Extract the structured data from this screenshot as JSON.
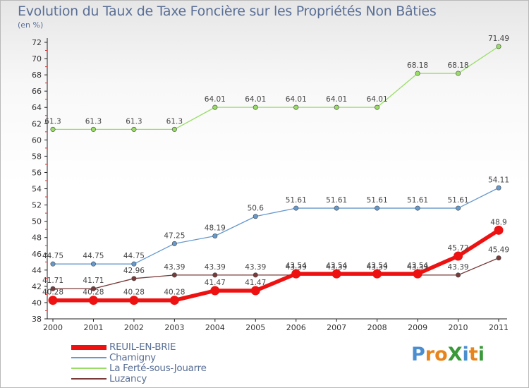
{
  "title": "Evolution du Taux de Taxe Foncière sur les Propriétés Non Bâties",
  "unit_label": "(en %)",
  "logo": {
    "text": "ProXiti",
    "letters": [
      {
        "ch": "P",
        "color": "#4a8ed0"
      },
      {
        "ch": "r",
        "color": "#e8841c"
      },
      {
        "ch": "o",
        "color": "#e8841c"
      },
      {
        "ch": "X",
        "color": "#3a9a3a"
      },
      {
        "ch": "i",
        "color": "#4a8ed0"
      },
      {
        "ch": "t",
        "color": "#e8841c"
      },
      {
        "ch": "i",
        "color": "#3a9a3a"
      }
    ]
  },
  "chart_data": {
    "type": "line",
    "title": "Evolution du Taux de Taxe Foncière sur les Propriétés Non Bâties",
    "ylabel": "(en %)",
    "xlabel": "",
    "x": [
      "2000",
      "2001",
      "2002",
      "2003",
      "2004",
      "2005",
      "2006",
      "2007",
      "2008",
      "2009",
      "2010",
      "2011"
    ],
    "ylim": [
      38,
      72
    ],
    "yticks": [
      38,
      40,
      42,
      44,
      46,
      48,
      50,
      52,
      54,
      56,
      58,
      60,
      62,
      64,
      66,
      68,
      70,
      72
    ],
    "grid": false,
    "legend_position": "bottom-left",
    "series": [
      {
        "name": "REUIL-EN-BRIE",
        "color": "#ee1111",
        "values": [
          40.28,
          40.28,
          40.28,
          40.28,
          41.47,
          41.47,
          43.54,
          43.54,
          43.54,
          43.54,
          45.72,
          48.9
        ],
        "labels": [
          "40.28",
          "40.28",
          "40.28",
          "40.28",
          "41.47",
          "41.47",
          "43.54",
          "43.54",
          "43.54",
          "43.54",
          "45.72",
          "48.9"
        ]
      },
      {
        "name": "Chamigny",
        "color": "#6699cc",
        "values": [
          44.75,
          44.75,
          44.75,
          47.25,
          48.19,
          50.6,
          51.61,
          51.61,
          51.61,
          51.61,
          51.61,
          54.11
        ],
        "labels": [
          "44.75",
          "44.75",
          "44.75",
          "47.25",
          "48.19",
          "50.6",
          "51.61",
          "51.61",
          "51.61",
          "51.61",
          "51.61",
          "54.11"
        ]
      },
      {
        "name": "La Ferté-sous-Jouarre",
        "color": "#99dd66",
        "values": [
          61.3,
          61.3,
          61.3,
          61.3,
          64.01,
          64.01,
          64.01,
          64.01,
          64.01,
          68.18,
          68.18,
          71.49
        ],
        "labels": [
          "61.3",
          "61.3",
          "61.3",
          "61.3",
          "64.01",
          "64.01",
          "64.01",
          "64.01",
          "64.01",
          "68.18",
          "68.18",
          "71.49"
        ]
      },
      {
        "name": "Luzancy",
        "color": "#7a3a3a",
        "values": [
          41.71,
          41.71,
          42.96,
          43.39,
          43.39,
          43.39,
          43.39,
          43.39,
          43.39,
          43.39,
          43.39,
          45.49
        ],
        "labels": [
          "41.71",
          "41.71",
          "42.96",
          "43.39",
          "43.39",
          "43.39",
          "43.39",
          "43.39",
          "43.39",
          "43.39",
          "43.39",
          "45.49"
        ]
      }
    ],
    "legend_order": [
      0,
      1,
      2,
      3
    ]
  }
}
